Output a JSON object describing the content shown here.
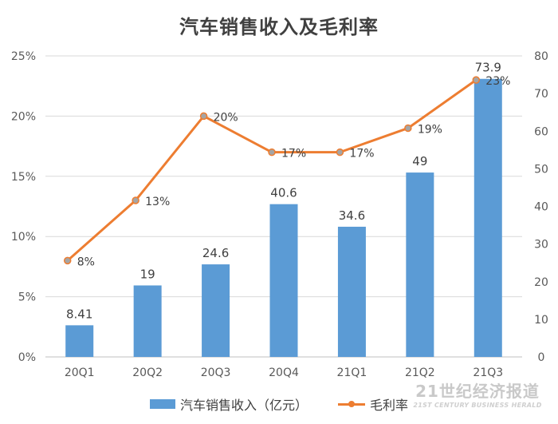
{
  "chart_data": {
    "type": "bar",
    "title": "汽车销售收入及毛利率",
    "categories": [
      "20Q1",
      "20Q2",
      "20Q3",
      "20Q4",
      "21Q1",
      "21Q2",
      "21Q3"
    ],
    "series": [
      {
        "name": "汽车销售收入（亿元）",
        "type": "bar",
        "axis": "right",
        "values": [
          8.41,
          19,
          24.6,
          40.6,
          34.6,
          49,
          73.9
        ],
        "labels": [
          "8.41",
          "19",
          "24.6",
          "40.6",
          "34.6",
          "49",
          "73.9"
        ],
        "color": "#5b9bd5"
      },
      {
        "name": "毛利率",
        "type": "line",
        "axis": "left",
        "values": [
          8,
          13,
          20,
          17,
          17,
          19,
          23
        ],
        "labels": [
          "8%",
          "13%",
          "20%",
          "17%",
          "17%",
          "19%",
          "23%"
        ],
        "color": "#ed7d31"
      }
    ],
    "left_axis": {
      "min": 0,
      "max": 25,
      "ticks": [
        0,
        5,
        10,
        15,
        20,
        25
      ],
      "tick_labels": [
        "0%",
        "5%",
        "10%",
        "15%",
        "20%",
        "25%"
      ]
    },
    "right_axis": {
      "min": 0,
      "max": 80,
      "ticks": [
        0,
        10,
        20,
        30,
        40,
        50,
        60,
        70,
        80
      ],
      "tick_labels": [
        "0",
        "10",
        "20",
        "30",
        "40",
        "50",
        "60",
        "70",
        "80"
      ]
    },
    "grid": true,
    "legend": "bottom-center"
  },
  "watermark": {
    "text": "21世纪经济报道",
    "subtext": "21ST CENTURY BUSINESS HERALD"
  }
}
